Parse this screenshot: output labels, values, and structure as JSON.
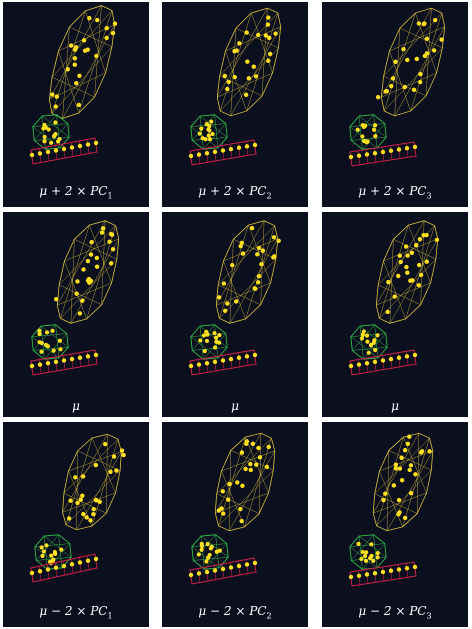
{
  "figure": {
    "panels": [
      {
        "mu": "μ",
        "op": " + 2 × ",
        "pc": "PC",
        "idx": "1",
        "variant": "plus"
      },
      {
        "mu": "μ",
        "op": " + 2 × ",
        "pc": "PC",
        "idx": "2",
        "variant": "plus"
      },
      {
        "mu": "μ",
        "op": " + 2 × ",
        "pc": "PC",
        "idx": "3",
        "variant": "plus"
      },
      {
        "mu": "μ",
        "op": "",
        "pc": "",
        "idx": "",
        "variant": "mean"
      },
      {
        "mu": "μ",
        "op": "",
        "pc": "",
        "idx": "",
        "variant": "mean"
      },
      {
        "mu": "μ",
        "op": "",
        "pc": "",
        "idx": "",
        "variant": "mean"
      },
      {
        "mu": "μ",
        "op": " − 2 × ",
        "pc": "PC",
        "idx": "1",
        "variant": "minus"
      },
      {
        "mu": "μ",
        "op": " − 2 × ",
        "pc": "PC",
        "idx": "2",
        "variant": "minus"
      },
      {
        "mu": "μ",
        "op": " − 2 × ",
        "pc": "PC",
        "idx": "3",
        "variant": "minus"
      }
    ],
    "colors": {
      "background": "#0c0f1e",
      "upper_mesh": "#d8c040",
      "middle_mesh": "#2fb84a",
      "lower_mesh": "#d0204a",
      "landmark": "#ffe020",
      "caption_text": "#ffffff"
    }
  }
}
